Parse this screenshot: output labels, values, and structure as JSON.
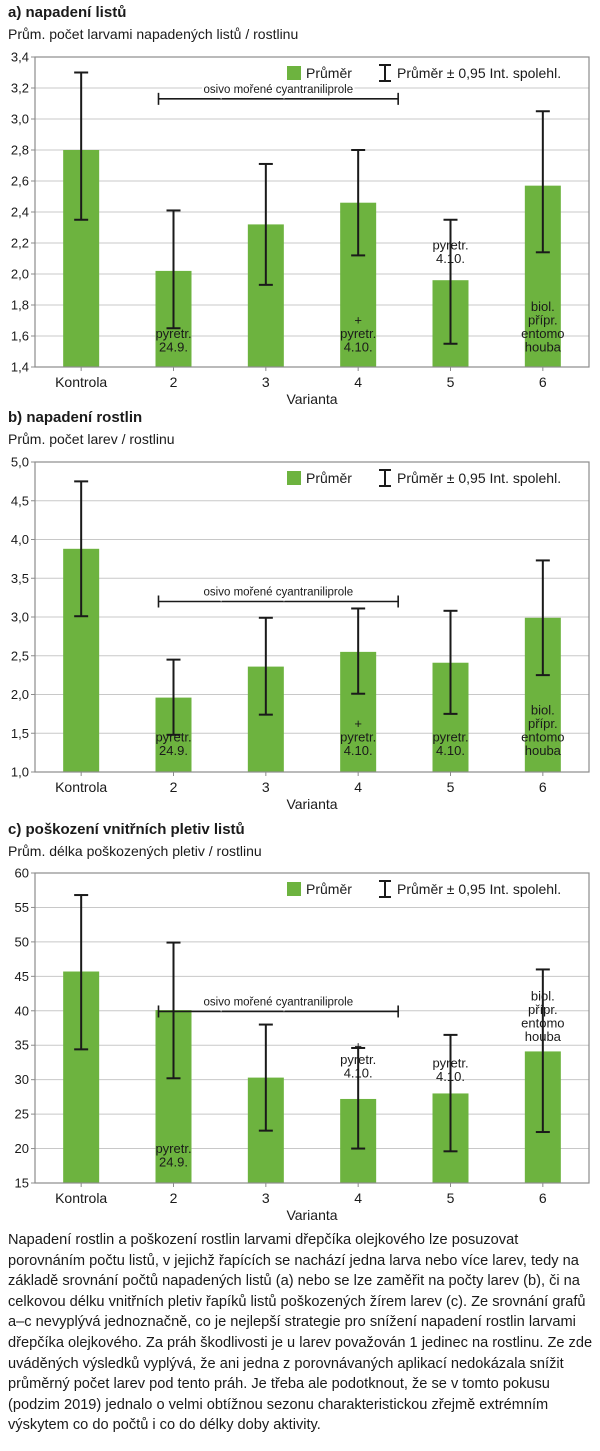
{
  "chart_data": [
    {
      "type": "bar",
      "title": "a) napadení listů",
      "ylabel": "Prům. počet larvami napadených listů / rostlinu",
      "xlabel": "Varianta",
      "categories": [
        "Kontrola",
        "2",
        "3",
        "4",
        "5",
        "6"
      ],
      "ylim": [
        1.4,
        3.4
      ],
      "ytick_labels": [
        "1,4",
        "1,6",
        "1,8",
        "2,0",
        "2,2",
        "2,4",
        "2,6",
        "2,8",
        "3,0",
        "3,2",
        "3,4"
      ],
      "values": [
        2.8,
        2.02,
        2.32,
        2.46,
        1.96,
        2.57
      ],
      "err_low": [
        2.35,
        1.65,
        1.93,
        2.12,
        1.55,
        2.14
      ],
      "err_high": [
        3.3,
        2.41,
        2.71,
        2.8,
        2.35,
        3.05
      ],
      "legend": {
        "mean": "Průměr",
        "ci": "Průměr ± 0,95 Int. spolehl."
      },
      "bracket": {
        "label": "osivo mořené cyantraniliprole",
        "from": 2,
        "to": 4,
        "value": 3.13
      },
      "annotations": [
        {
          "cat": 1,
          "lines": [
            "pyretr.",
            "24.9."
          ],
          "value": 1.5
        },
        {
          "cat": 3,
          "lines": [
            "+",
            "pyretr.",
            "4.10."
          ],
          "value": 1.5
        },
        {
          "cat": 4,
          "lines": [
            "pyretr.",
            "4.10."
          ],
          "value": 2.07
        },
        {
          "cat": 5,
          "lines": [
            "biol.",
            "přípr.",
            "entomo",
            "houba"
          ],
          "value": 1.5
        }
      ]
    },
    {
      "type": "bar",
      "title": "b) napadení rostlin",
      "ylabel": "Prům. počet larev / rostlinu",
      "xlabel": "Varianta",
      "categories": [
        "Kontrola",
        "2",
        "3",
        "4",
        "5",
        "6"
      ],
      "ylim": [
        1.0,
        5.0
      ],
      "ytick_labels": [
        "1,0",
        "1,5",
        "2,0",
        "2,5",
        "3,0",
        "3,5",
        "4,0",
        "4,5",
        "5,0"
      ],
      "values": [
        3.88,
        1.96,
        2.36,
        2.55,
        2.41,
        2.99
      ],
      "err_low": [
        3.01,
        1.48,
        1.74,
        2.01,
        1.75,
        2.25
      ],
      "err_high": [
        4.75,
        2.45,
        2.99,
        3.11,
        3.08,
        3.73
      ],
      "legend": {
        "mean": "Průměr",
        "ci": "Průměr ± 0,95 Int. spolehl."
      },
      "bracket": {
        "label": "osivo mořené cyantraniliprole",
        "from": 2,
        "to": 4,
        "value": 3.2
      },
      "annotations": [
        {
          "cat": 1,
          "lines": [
            "pyretr.",
            "24.9."
          ],
          "value": 1.22
        },
        {
          "cat": 3,
          "lines": [
            "+",
            "pyretr.",
            "4.10."
          ],
          "value": 1.22
        },
        {
          "cat": 4,
          "lines": [
            "pyretr.",
            "4.10."
          ],
          "value": 1.22
        },
        {
          "cat": 5,
          "lines": [
            "biol.",
            "přípr.",
            "entomo",
            "houba"
          ],
          "value": 1.22
        }
      ]
    },
    {
      "type": "bar",
      "title": "c) poškození vnitřních pletiv listů",
      "ylabel": "Prům. délka poškozených pletiv / rostlinu",
      "xlabel": "Varianta",
      "categories": [
        "Kontrola",
        "2",
        "3",
        "4",
        "5",
        "6"
      ],
      "ylim": [
        15,
        60
      ],
      "ytick_labels": [
        "15",
        "20",
        "25",
        "30",
        "35",
        "40",
        "45",
        "50",
        "55",
        "60"
      ],
      "values": [
        45.7,
        40.1,
        30.3,
        27.2,
        28.0,
        34.1
      ],
      "err_low": [
        34.4,
        30.2,
        22.6,
        20.0,
        19.6,
        22.4
      ],
      "err_high": [
        56.8,
        49.9,
        38.0,
        34.6,
        36.5,
        46.0
      ],
      "legend": {
        "mean": "Průměr",
        "ci": "Průměr ± 0,95 Int. spolehl."
      },
      "bracket": {
        "label": "osivo mořené cyantraniliprole",
        "from": 2,
        "to": 4,
        "value": 39.9
      },
      "annotations": [
        {
          "cat": 1,
          "lines": [
            "pyretr.",
            "24.9."
          ],
          "value": 17.4
        },
        {
          "cat": 3,
          "lines": [
            "+",
            "pyretr.",
            "4.10."
          ],
          "value": 30.3
        },
        {
          "cat": 4,
          "lines": [
            "pyretr.",
            "4.10."
          ],
          "value": 29.8
        },
        {
          "cat": 5,
          "lines": [
            "biol.",
            "přípr.",
            "entomo",
            "houba"
          ],
          "value": 35.6
        }
      ]
    }
  ],
  "colors": {
    "bar": "#6db33f",
    "grid": "#c8c8c8",
    "frame": "#8c8c8c",
    "error": "#1a1a1a"
  },
  "caption": "Napadení rostlin a poškození rostlin larvami dřepčíka olejkového lze posuzovat porovnáním počtu listů, v jejichž řapících se nachází jedna larva nebo více larev, tedy na základě srovnání počtů napadených listů (a) nebo se lze zaměřit na počty larev (b), či na celkovou délku vnitřních pletiv řapíků listů poškozených žírem larev (c). Ze srovnání grafů a–c nevyplývá jednoznačně, co je nejlepší strategie pro snížení napadení rostlin larvami dřepčíka olejkového. Za práh škodlivosti je u larev považován 1 jedinec na rostlinu. Ze zde uváděných výsledků vyplývá, že ani jedna z porovnávaných aplikací nedokázala snížit průměrný počet larev pod tento práh. Je třeba ale podotknout, že se v tomto pokusu (podzim 2019) jednalo o velmi obtížnou sezonu charakteristickou zřejmě extrémním výskytem co do počtů i co do délky doby aktivity."
}
